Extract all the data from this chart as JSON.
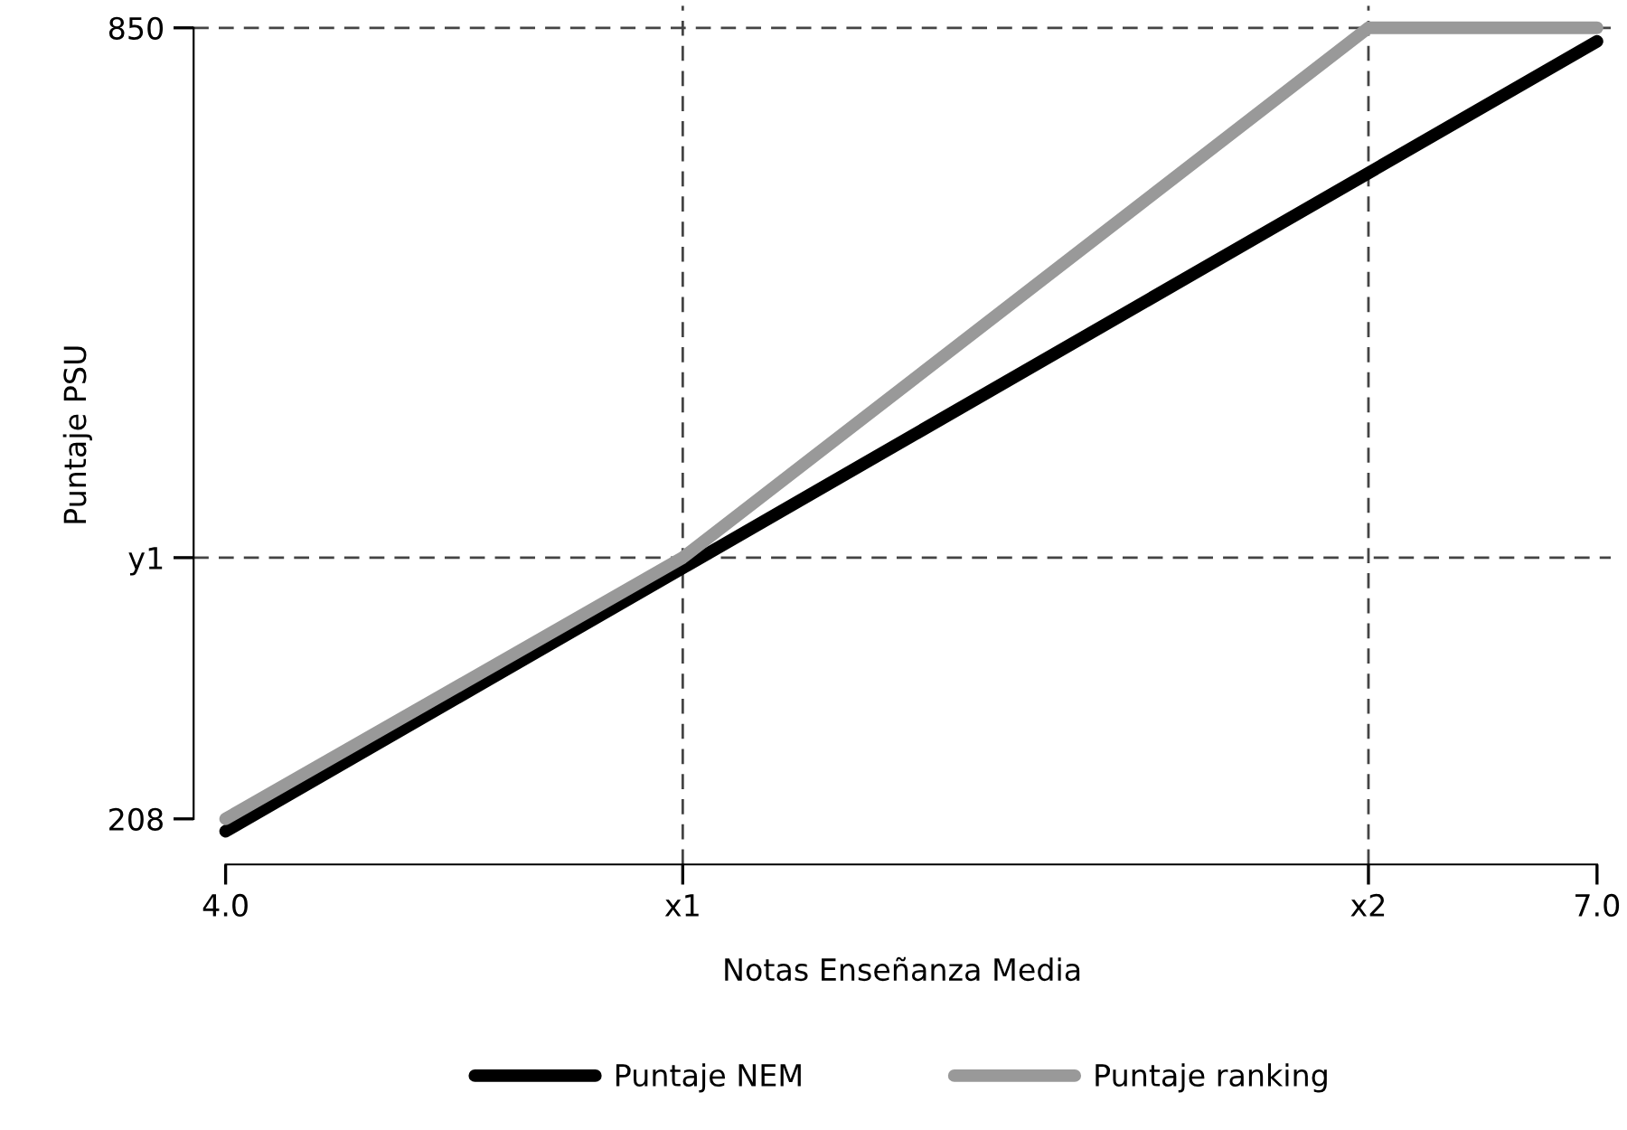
{
  "chart_data": {
    "type": "line",
    "xlabel": "Notas Enseñanza Media",
    "ylabel": "Puntaje PSU",
    "series": [
      {
        "name": "Puntaje NEM",
        "color": "#000000",
        "x": [
          4.0,
          7.0
        ],
        "values": [
          198,
          839
        ]
      },
      {
        "name": "Puntaje ranking",
        "color": "#999999",
        "x": [
          4.0,
          5.0,
          6.5,
          7.0
        ],
        "values": [
          208,
          420,
          850,
          850
        ]
      }
    ],
    "xlim": [
      3.93,
      7.03
    ],
    "ylim": [
      171,
      868
    ],
    "xticks": [
      {
        "value": 4.0,
        "label": "4.0"
      },
      {
        "value": 5.0,
        "label": "x1"
      },
      {
        "value": 6.5,
        "label": "x2"
      },
      {
        "value": 7.0,
        "label": "7.0"
      }
    ],
    "yticks": [
      208,
      {
        "value": 420,
        "label": "y1"
      },
      850
    ],
    "ref_lines": [
      {
        "axis": "x",
        "value": 5.0,
        "color": "#444444",
        "line_style": "dashed"
      },
      {
        "axis": "x",
        "value": 6.5,
        "color": "#444444",
        "line_style": "dashed"
      },
      {
        "axis": "y",
        "value": 420,
        "color": "#444444",
        "line_style": "dashed"
      },
      {
        "axis": "y",
        "value": 850,
        "color": "#444444",
        "line_style": "dashed"
      }
    ],
    "grid": false,
    "legend": "bottom",
    "marker": "none",
    "line_style": "solid"
  }
}
